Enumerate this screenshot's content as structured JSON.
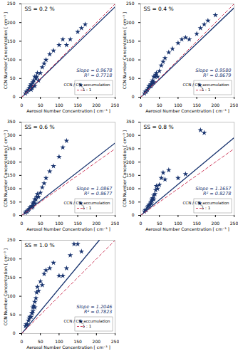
{
  "chart_data": [
    {
      "type": "scatter",
      "title": "SS = 0.2 %",
      "xlabel": "Aerosol Number Concentration [ cm⁻³ ]",
      "ylabel": "CCN Number Concentration [ cm⁻³ ]",
      "xlim": [
        0,
        250
      ],
      "ylim": [
        0,
        250
      ],
      "xticks": [
        0,
        50,
        100,
        150,
        200,
        250
      ],
      "yticks": [
        0,
        50,
        100,
        150,
        200,
        250
      ],
      "legend": "lower right",
      "annotations": [
        "Slope = 0.9678",
        "R² = 0.7718"
      ],
      "series": [
        {
          "name": "CCN / CN_accumulation",
          "type": "scatter",
          "marker": "star",
          "color": "#1a3570",
          "x": [
            10,
            12,
            15,
            18,
            20,
            22,
            25,
            25,
            27,
            28,
            30,
            30,
            32,
            35,
            35,
            38,
            40,
            42,
            45,
            50,
            55,
            60,
            65,
            75,
            85,
            100,
            110,
            120,
            130,
            150,
            160,
            170
          ],
          "values": [
            10,
            15,
            15,
            20,
            25,
            30,
            20,
            35,
            30,
            25,
            30,
            40,
            45,
            30,
            55,
            50,
            55,
            65,
            45,
            65,
            80,
            90,
            100,
            115,
            125,
            140,
            155,
            140,
            155,
            175,
            185,
            195
          ]
        },
        {
          "type": "line",
          "line_style": "solid",
          "color": "#1a3570",
          "x": [
            0,
            250
          ],
          "values": [
            0,
            241.95
          ]
        },
        {
          "name": "1 : 1",
          "type": "line",
          "line_style": "dashed",
          "color": "#d04060",
          "x": [
            0,
            250
          ],
          "values": [
            0,
            250
          ]
        }
      ]
    },
    {
      "type": "scatter",
      "title": "SS = 0.4 %",
      "xlabel": "Aerosol Number Concentration [ cm⁻³ ]",
      "ylabel": "CCN Number Concentration [ cm⁻³ ]",
      "xlim": [
        0,
        250
      ],
      "ylim": [
        0,
        250
      ],
      "xticks": [
        0,
        50,
        100,
        150,
        200,
        250
      ],
      "yticks": [
        0,
        50,
        100,
        150,
        200,
        250
      ],
      "legend": "lower right",
      "annotations": [
        "Slope = 0.9580",
        "R² = 0.8679"
      ],
      "series": [
        {
          "name": "CCN / CN_accumulation",
          "type": "scatter",
          "marker": "star",
          "color": "#1a3570",
          "x": [
            10,
            12,
            15,
            18,
            20,
            22,
            25,
            27,
            28,
            30,
            30,
            32,
            35,
            35,
            38,
            40,
            42,
            45,
            50,
            55,
            60,
            65,
            75,
            85,
            100,
            110,
            120,
            130,
            150,
            160,
            170,
            180,
            200
          ],
          "values": [
            10,
            15,
            15,
            20,
            25,
            30,
            30,
            35,
            30,
            35,
            40,
            45,
            40,
            55,
            55,
            60,
            65,
            55,
            70,
            85,
            95,
            105,
            120,
            130,
            145,
            155,
            160,
            155,
            170,
            185,
            195,
            205,
            220
          ]
        },
        {
          "type": "line",
          "line_style": "solid",
          "color": "#1a3570",
          "x": [
            0,
            250
          ],
          "values": [
            0,
            239.5
          ]
        },
        {
          "name": "1 : 1",
          "type": "line",
          "line_style": "dashed",
          "color": "#d04060",
          "x": [
            0,
            250
          ],
          "values": [
            0,
            250
          ]
        }
      ]
    },
    {
      "type": "scatter",
      "title": "SS = 0.6 %",
      "xlabel": "Aerosol Number Concentration [ cm⁻³ ]",
      "ylabel": "CCN Number Concentration [ cm⁻³ ]",
      "xlim": [
        0,
        250
      ],
      "ylim": [
        0,
        350
      ],
      "xticks": [
        0,
        50,
        100,
        150,
        200,
        250
      ],
      "yticks": [
        0,
        50,
        100,
        150,
        200,
        250,
        300,
        350
      ],
      "legend": "lower right",
      "annotations": [
        "Slope = 1.0867",
        "R² = 0.8677"
      ],
      "series": [
        {
          "name": "CCN / CN_accumulation",
          "type": "scatter",
          "marker": "star",
          "color": "#1a3570",
          "x": [
            10,
            12,
            15,
            18,
            20,
            22,
            25,
            27,
            28,
            30,
            30,
            32,
            35,
            35,
            38,
            40,
            42,
            45,
            50,
            55,
            60,
            65,
            75,
            85,
            100,
            110,
            120
          ],
          "values": [
            10,
            15,
            15,
            20,
            25,
            30,
            30,
            35,
            30,
            35,
            45,
            50,
            45,
            60,
            60,
            70,
            80,
            70,
            85,
            105,
            120,
            140,
            165,
            185,
            220,
            255,
            280
          ]
        },
        {
          "type": "line",
          "line_style": "solid",
          "color": "#1a3570",
          "x": [
            0,
            250
          ],
          "values": [
            0,
            271.675
          ]
        },
        {
          "name": "1 : 1",
          "type": "line",
          "line_style": "dashed",
          "color": "#d04060",
          "x": [
            0,
            250
          ],
          "values": [
            0,
            250
          ]
        }
      ]
    },
    {
      "type": "scatter",
      "title": "SS = 0.8 %",
      "xlabel": "Aerosol Number Concentration [ cm⁻³ ]",
      "ylabel": "CCN Number Concentration [ cm⁻³ ]",
      "xlim": [
        0,
        250
      ],
      "ylim": [
        0,
        350
      ],
      "xticks": [
        0,
        50,
        100,
        150,
        200,
        250
      ],
      "yticks": [
        0,
        50,
        100,
        150,
        200,
        250,
        300,
        350
      ],
      "legend": "lower right",
      "annotations": [
        "Slope = 1.1657",
        "R² = 0.8278"
      ],
      "series": [
        {
          "name": "CCN / CN_accumulation",
          "type": "scatter",
          "marker": "star",
          "color": "#1a3570",
          "x": [
            10,
            12,
            15,
            18,
            20,
            22,
            25,
            27,
            28,
            30,
            30,
            32,
            35,
            35,
            38,
            40,
            42,
            45,
            50,
            55,
            60,
            65,
            75,
            100,
            120,
            160,
            170
          ],
          "values": [
            15,
            20,
            20,
            30,
            35,
            40,
            40,
            50,
            45,
            55,
            60,
            65,
            60,
            75,
            80,
            95,
            110,
            100,
            115,
            140,
            160,
            135,
            170,
            140,
            155,
            320,
            310
          ]
        },
        {
          "type": "line",
          "line_style": "solid",
          "color": "#1a3570",
          "x": [
            0,
            250
          ],
          "values": [
            0,
            291.425
          ]
        },
        {
          "name": "1 : 1",
          "type": "line",
          "line_style": "dashed",
          "color": "#d04060",
          "x": [
            0,
            250
          ],
          "values": [
            0,
            250
          ]
        }
      ]
    },
    {
      "type": "scatter",
      "title": "SS = 1.0 %",
      "xlabel": "Aerosol Number Concentration [ cm⁻³ ]",
      "ylabel": "CCN Number Concentration [ cm⁻³ ]",
      "xlim": [
        0,
        250
      ],
      "ylim": [
        0,
        250
      ],
      "xticks": [
        0,
        50,
        100,
        150,
        200,
        250
      ],
      "yticks": [
        0,
        50,
        100,
        150,
        200,
        250
      ],
      "legend": "lower right",
      "annotations": [
        "Slope = 1.2046",
        "R² = 0.7823"
      ],
      "series": [
        {
          "name": "CCN / CN_accumulation",
          "type": "scatter",
          "marker": "star",
          "color": "#1a3570",
          "x": [
            10,
            12,
            15,
            18,
            20,
            22,
            25,
            27,
            28,
            30,
            30,
            32,
            35,
            35,
            38,
            40,
            42,
            45,
            50,
            55,
            60,
            65,
            75,
            85,
            100,
            110,
            120,
            130,
            140,
            150,
            160
          ],
          "values": [
            20,
            25,
            25,
            35,
            40,
            45,
            45,
            55,
            55,
            60,
            70,
            75,
            70,
            85,
            95,
            110,
            125,
            115,
            140,
            130,
            160,
            170,
            175,
            190,
            155,
            155,
            175,
            210,
            240,
            240,
            220
          ]
        },
        {
          "type": "line",
          "line_style": "solid",
          "color": "#1a3570",
          "x": [
            0,
            207.5378
          ],
          "values": [
            0,
            250
          ]
        },
        {
          "name": "1 : 1",
          "type": "line",
          "line_style": "dashed",
          "color": "#d04060",
          "x": [
            0,
            250
          ],
          "values": [
            0,
            250
          ]
        }
      ]
    }
  ]
}
